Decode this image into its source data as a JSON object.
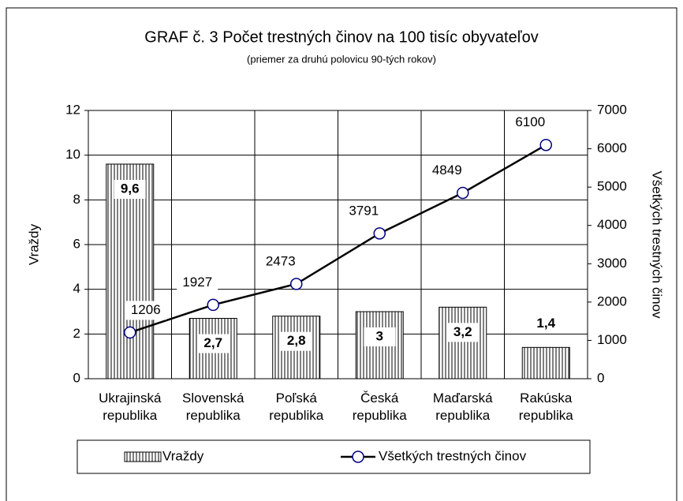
{
  "chart_data": {
    "type": "bar_line",
    "title": "GRAF č. 3   Počet trestných činov na 100 tisíc obyvateľov",
    "subtitle": "(priemer za druhú polovicu 90-tých rokov)",
    "y_label": "Vraždy",
    "y2_label": "Všetkých trestných činov",
    "categories": [
      "Ukrajinská republika",
      "Slovenská republika",
      "Poľská republika",
      "Česká republika",
      "Maďarská republika",
      "Rakúska republika"
    ],
    "series": [
      {
        "name": "Vraždy",
        "type": "bar",
        "color": "#000000",
        "values": [
          9.6,
          2.7,
          2.8,
          3,
          3.2,
          1.4
        ],
        "value_labels": [
          "9,6",
          "2,7",
          "2,8",
          "3",
          "3,2",
          "1,4"
        ]
      },
      {
        "name": "Všetkých trestných činov",
        "type": "line",
        "axis": "y2",
        "color": "#000000",
        "marker_color": "#000080",
        "values": [
          1206,
          1927,
          2473,
          3791,
          4849,
          6100
        ]
      }
    ],
    "ylim": [
      0,
      12
    ],
    "yticks": [
      0,
      2,
      4,
      6,
      8,
      10,
      12
    ],
    "y2lim": [
      0,
      7000
    ],
    "y2ticks": [
      0,
      1000,
      2000,
      3000,
      4000,
      5000,
      6000,
      7000
    ],
    "grid": true
  }
}
